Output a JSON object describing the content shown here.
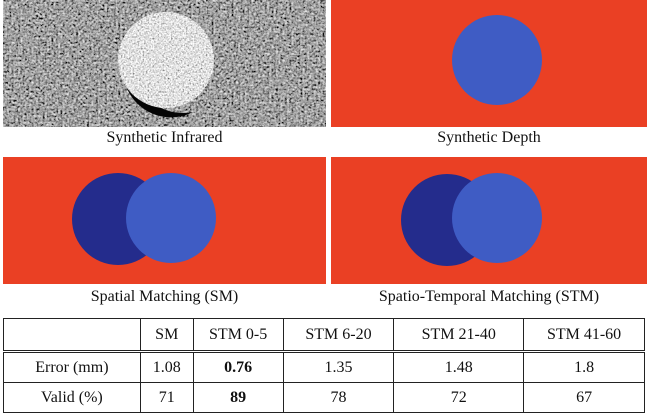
{
  "figures": [
    {
      "caption": "Synthetic Infrared"
    },
    {
      "caption": "Synthetic Depth"
    },
    {
      "caption": "Spatial Matching (SM)"
    },
    {
      "caption": "Spatio-Temporal Matching (STM)"
    }
  ],
  "table": {
    "header": [
      "",
      "SM",
      "STM 0-5",
      "STM 6-20",
      "STM 21-40",
      "STM 41-60"
    ],
    "rows": [
      [
        "Error (mm)",
        1.08,
        0.76,
        1.35,
        1.48,
        1.8
      ],
      [
        "Valid (%)",
        71,
        89,
        78,
        72,
        67
      ]
    ]
  }
}
